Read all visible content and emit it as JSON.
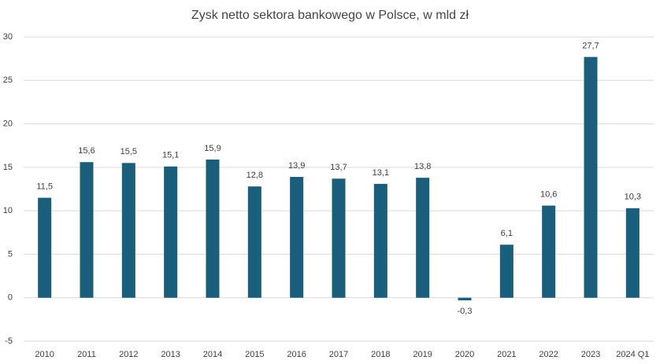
{
  "chart_data": {
    "type": "bar",
    "title": "Zysk netto sektora bankowego w Polsce, w mld zł",
    "categories": [
      "2010",
      "2011",
      "2012",
      "2013",
      "2014",
      "2015",
      "2016",
      "2017",
      "2018",
      "2019",
      "2020",
      "2021",
      "2022",
      "2023",
      "2024 Q1"
    ],
    "values": [
      11.5,
      15.6,
      15.5,
      15.1,
      15.9,
      12.8,
      13.9,
      13.7,
      13.1,
      13.8,
      -0.3,
      6.1,
      10.6,
      27.7,
      10.3
    ],
    "value_labels": [
      "11,5",
      "15,6",
      "15,5",
      "15,1",
      "15,9",
      "12,8",
      "13,9",
      "13,7",
      "13,1",
      "13,8",
      "-0,3",
      "6,1",
      "10,6",
      "27,7",
      "10,3"
    ],
    "color": "#1b5e7b",
    "ylim": [
      -5,
      30
    ],
    "yticks": [
      -5,
      0,
      5,
      10,
      15,
      20,
      25,
      30
    ],
    "grid": true
  }
}
